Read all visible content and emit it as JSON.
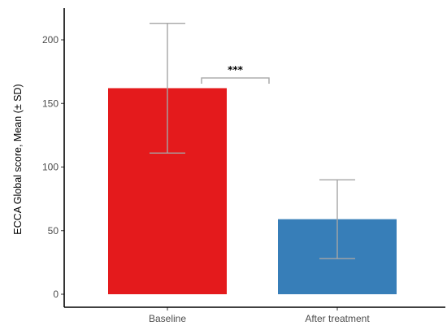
{
  "chart_data": {
    "type": "bar",
    "categories": [
      "Baseline",
      "After treatment"
    ],
    "values": [
      162,
      59
    ],
    "errors": [
      51,
      31
    ],
    "colors": [
      "#e41a1c",
      "#377eb8"
    ],
    "ylabel": "ECCA Global score, Mean (± SD)",
    "xlabel": "",
    "ylim": [
      0,
      220
    ],
    "yticks": [
      0,
      50,
      100,
      150,
      200
    ],
    "grid": false,
    "error_bar_color": "#a6a6a6",
    "significance": {
      "label": "***",
      "from": "Baseline",
      "to": "After treatment",
      "y": 170
    }
  }
}
